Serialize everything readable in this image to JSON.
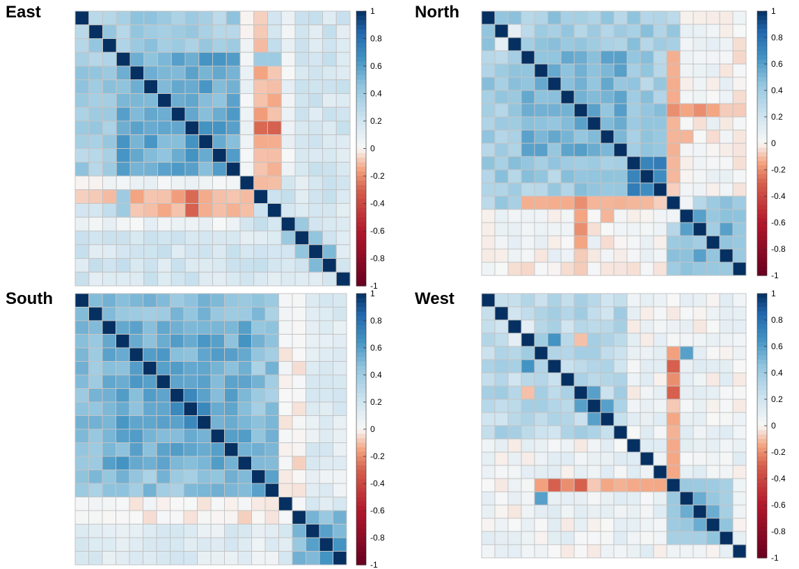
{
  "chart_data": [
    {
      "type": "heatmap",
      "title": "East",
      "n": 20,
      "colorbar": {
        "min": -1,
        "max": 1,
        "ticks": [
          "1",
          "0.8",
          "0.6",
          "0.4",
          "0.2",
          "0",
          "-0.2",
          "-0.4",
          "-0.6",
          "-0.8",
          "-1"
        ]
      },
      "blocks": [
        [
          0,
          12,
          0.38
        ],
        [
          3,
          11,
          0.55
        ]
      ],
      "background": 0.18,
      "rows_override": [
        {
          "row": 12,
          "cols": [
            0,
            13
          ],
          "value": 0.04
        },
        {
          "row": 13,
          "cols": [
            0,
            12
          ],
          "value": -0.12
        },
        {
          "row": 15,
          "cols": [
            0,
            11
          ],
          "value": 0.05
        }
      ],
      "col_override": [
        {
          "col": 14,
          "rows": [
            4,
            12
          ],
          "value": -0.12
        },
        {
          "col": 14,
          "rows": [
            8,
            8
          ],
          "value": -0.3
        },
        {
          "col": 14,
          "rows": [
            3,
            3
          ],
          "value": 0.42
        }
      ],
      "cells": [
        [
          13,
          3,
          0.4
        ],
        [
          13,
          8,
          -0.28
        ],
        [
          18,
          17,
          0.5
        ],
        [
          17,
          16,
          0.45
        ],
        [
          16,
          15,
          0.42
        ]
      ]
    },
    {
      "type": "heatmap",
      "title": "North",
      "n": 20,
      "colorbar": {
        "min": -1,
        "max": 1,
        "ticks": [
          "1",
          "0.8",
          "0.6",
          "0.4",
          "0.2",
          "0",
          "-0.2",
          "-0.4",
          "-0.6",
          "-0.8",
          "-1"
        ]
      },
      "blocks": [
        [
          0,
          14,
          0.38
        ],
        [
          3,
          10,
          0.52
        ],
        [
          11,
          14,
          0.72
        ],
        [
          14,
          19,
          0.38
        ]
      ],
      "background": 0.02,
      "rows_override": [],
      "col_override": [
        {
          "col": 14,
          "rows": [
            3,
            14
          ],
          "value": -0.1
        },
        {
          "col": 15,
          "rows": [
            3,
            14
          ],
          "value": 0.02
        }
      ],
      "cells": [
        [
          1,
          2,
          0.1
        ],
        [
          7,
          14,
          -0.2
        ],
        [
          7,
          15,
          -0.2
        ],
        [
          7,
          16,
          -0.08
        ],
        [
          7,
          17,
          -0.08
        ],
        [
          7,
          18,
          -0.08
        ],
        [
          7,
          19,
          -0.08
        ],
        [
          14,
          7,
          -0.2
        ],
        [
          15,
          7,
          -0.15
        ],
        [
          16,
          7,
          -0.2
        ],
        [
          17,
          7,
          -0.15
        ],
        [
          14,
          8,
          -0.12
        ],
        [
          14,
          9,
          -0.12
        ],
        [
          15,
          9,
          -0.12
        ],
        [
          18,
          16,
          0.6
        ],
        [
          17,
          17,
          0.6
        ],
        [
          16,
          15,
          0.6
        ],
        [
          15,
          15,
          0.55
        ]
      ]
    },
    {
      "type": "heatmap",
      "title": "South",
      "n": 20,
      "colorbar": {
        "min": -1,
        "max": 1,
        "ticks": [
          "1",
          "0.8",
          "0.6",
          "0.4",
          "0.2",
          "0",
          "-0.2",
          "-0.4",
          "-0.6",
          "-0.8",
          "-1"
        ]
      },
      "blocks": [
        [
          0,
          15,
          0.45
        ],
        [
          2,
          12,
          0.55
        ],
        [
          13,
          15,
          0.6
        ],
        [
          16,
          19,
          0.38
        ],
        [
          16,
          19,
          0.5
        ]
      ],
      "background": 0.12,
      "rows_override": [
        {
          "row": 16,
          "cols": [
            0,
            15
          ],
          "value": -0.03
        }
      ],
      "col_override": [
        {
          "col": 15,
          "rows": [
            0,
            15
          ],
          "value": 0.0
        }
      ],
      "cells": [
        [
          7,
          7,
          0.7
        ],
        [
          8,
          7,
          0.7
        ],
        [
          9,
          8,
          0.7
        ],
        [
          17,
          17,
          0.6
        ],
        [
          18,
          18,
          0.65
        ],
        [
          17,
          18,
          0.6
        ],
        [
          18,
          19,
          0.65
        ],
        [
          19,
          18,
          0.65
        ]
      ]
    },
    {
      "type": "heatmap",
      "title": "West",
      "n": 20,
      "colorbar": {
        "min": -1,
        "max": 1,
        "ticks": [
          "1",
          "0.8",
          "0.6",
          "0.4",
          "0.2",
          "0",
          "-0.2",
          "-0.4",
          "-0.6",
          "-0.8",
          "-1"
        ]
      },
      "blocks": [
        [
          0,
          10,
          0.3
        ],
        [
          14,
          18,
          0.4
        ]
      ],
      "background": 0.05,
      "rows_override": [
        {
          "row": 14,
          "cols": [
            4,
            13
          ],
          "value": -0.12
        }
      ],
      "col_override": [
        {
          "col": 14,
          "rows": [
            5,
            12
          ],
          "value": -0.12
        }
      ],
      "cells": [
        [
          5,
          14,
          -0.3
        ],
        [
          14,
          5,
          -0.3
        ],
        [
          14,
          7,
          -0.3
        ],
        [
          14,
          6,
          -0.2
        ],
        [
          2,
          3,
          0.1
        ],
        [
          3,
          7,
          -0.1
        ],
        [
          7,
          8,
          0.6
        ],
        [
          8,
          9,
          0.6
        ],
        [
          15,
          16,
          0.55
        ],
        [
          16,
          17,
          0.55
        ],
        [
          3,
          5,
          0.65
        ],
        [
          15,
          4,
          0.6
        ],
        [
          4,
          15,
          0.6
        ]
      ]
    }
  ]
}
